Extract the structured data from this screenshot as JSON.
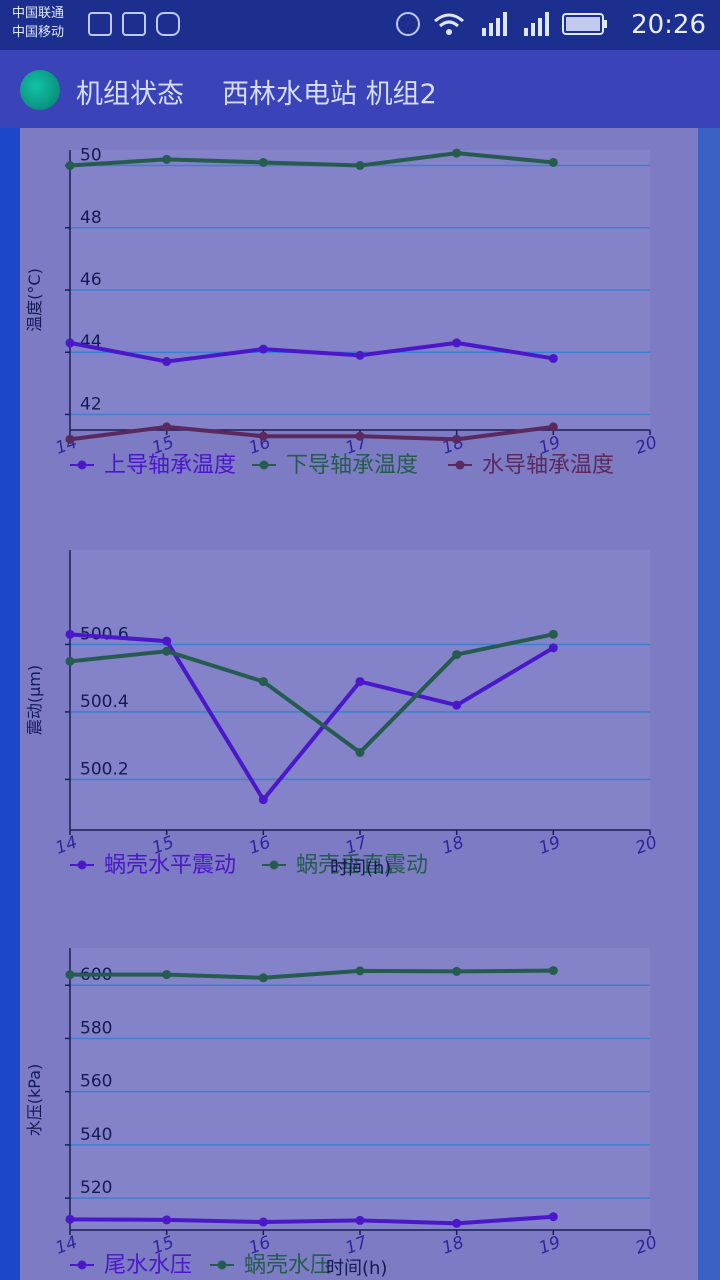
{
  "status_bar": {
    "carrier1": "中国联通",
    "carrier2": "中国移动",
    "time": "20:26",
    "icons": [
      "lock-icon",
      "image-icon",
      "app-icon",
      "alarm-icon",
      "wifi-icon",
      "signal-2g-icon",
      "signal-4g-icon",
      "battery-icon"
    ]
  },
  "app_bar": {
    "title": "机组状态",
    "subtitle": "西林水电站 机组2"
  },
  "colors": {
    "plot_bg": "#8482c9",
    "grid": "#3b7fd0",
    "blue_series": "#4a18c8",
    "green_series": "#255c4f",
    "maroon_series": "#5a2a5e"
  },
  "chart_data": [
    {
      "type": "line",
      "ylabel": "温度(°C)",
      "xlabel": "",
      "xlim": [
        14,
        20
      ],
      "ylim": [
        41.5,
        50.5
      ],
      "x_ticks": [
        "14",
        "15",
        "16",
        "17",
        "18",
        "19",
        "20"
      ],
      "y_ticks": [
        "42",
        "44",
        "46",
        "48",
        "50"
      ],
      "series": [
        {
          "name": "上导轴承温度",
          "color": "#4a18c8",
          "x": [
            14,
            15,
            16,
            17,
            18,
            19
          ],
          "values": [
            44.3,
            43.7,
            44.1,
            43.9,
            44.3,
            43.8
          ]
        },
        {
          "name": "下导轴承温度",
          "color": "#255c4f",
          "x": [
            14,
            15,
            16,
            17,
            18,
            19
          ],
          "values": [
            50.0,
            50.2,
            50.1,
            50.0,
            50.4,
            50.1
          ]
        },
        {
          "name": "水导轴承温度",
          "color": "#5a2a5e",
          "x": [
            14,
            15,
            16,
            17,
            18,
            19
          ],
          "values": [
            41.2,
            41.6,
            41.3,
            41.3,
            41.2,
            41.6
          ]
        }
      ]
    },
    {
      "type": "line",
      "ylabel": "震动(μm)",
      "xlabel": "时间(h)",
      "xlim": [
        14,
        20
      ],
      "ylim": [
        500.05,
        500.88
      ],
      "x_ticks": [
        "14",
        "15",
        "16",
        "17",
        "18",
        "19",
        "20"
      ],
      "y_ticks": [
        "500.2",
        "500.4",
        "500.6"
      ],
      "series": [
        {
          "name": "蜗壳水平震动",
          "color": "#4a18c8",
          "x": [
            14,
            15,
            16,
            17,
            18,
            19
          ],
          "values": [
            500.63,
            500.61,
            500.14,
            500.49,
            500.42,
            500.59
          ]
        },
        {
          "name": "蜗壳垂直震动",
          "color": "#255c4f",
          "x": [
            14,
            15,
            16,
            17,
            18,
            19
          ],
          "values": [
            500.55,
            500.58,
            500.49,
            500.28,
            500.57,
            500.63
          ]
        }
      ]
    },
    {
      "type": "line",
      "ylabel": "水压(kPa)",
      "xlabel": "时间(h)",
      "xlim": [
        14,
        20
      ],
      "ylim": [
        508,
        614
      ],
      "x_ticks": [
        "14",
        "15",
        "16",
        "17",
        "18",
        "19",
        "20"
      ],
      "y_ticks": [
        "520",
        "540",
        "560",
        "580",
        "600"
      ],
      "series": [
        {
          "name": "尾水水压",
          "color": "#4a18c8",
          "x": [
            14,
            15,
            16,
            17,
            18,
            19
          ],
          "values": [
            512,
            511.8,
            511,
            511.6,
            510.5,
            513
          ]
        },
        {
          "name": "蜗壳水压",
          "color": "#255c4f",
          "x": [
            14,
            15,
            16,
            17,
            18,
            19
          ],
          "values": [
            604,
            604,
            602.8,
            605.4,
            605.2,
            605.5
          ]
        }
      ]
    }
  ]
}
